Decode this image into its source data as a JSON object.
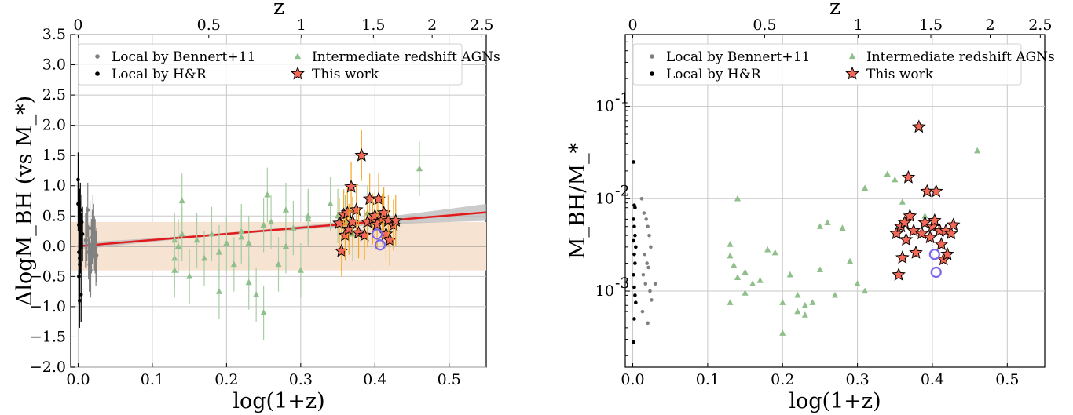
{
  "chart_data": [
    {
      "type": "scatter",
      "xlabel": "log(1+z)",
      "ylabel": "ΔlogM_BH (vs M_*)",
      "top_axis_label": "z",
      "xlim": [
        -0.01,
        0.55
      ],
      "ylim": [
        -2.0,
        3.5
      ],
      "x_ticks": [
        "0.0",
        "0.1",
        "0.2",
        "0.3",
        "0.4",
        "0.5"
      ],
      "y_ticks": [
        "3.5",
        "3.0",
        "2.5",
        "2.0",
        "1.5",
        "1.0",
        "0.5",
        "0.0",
        "−0.5",
        "−1.0",
        "−1.5",
        "−2.0"
      ],
      "top_ticks": [
        "0",
        "0.5",
        "1",
        "1.5",
        "2",
        "2.5"
      ],
      "grid": true,
      "legend_position": "top",
      "legend": [
        "Local by Bennert+11",
        "Local by H&R",
        "Intermediate redshift AGNs",
        "This work"
      ],
      "colors": {
        "bennert": "#808080",
        "hr": "#000000",
        "agn": "#8fbf8a",
        "this_work": "#f26a57",
        "fit": "#e31a1c",
        "band": "#f7e3d2",
        "errbar": "#f5a623",
        "highlight": "#7b68ee"
      },
      "fit_line": {
        "x": [
          0.0,
          0.55
        ],
        "y": [
          0.0,
          0.56
        ]
      },
      "scatter_band": [
        -0.4,
        0.4
      ],
      "series": [
        {
          "name": "Local by H&R",
          "x": [
            0.0,
            0.0,
            0.002,
            0.003,
            0.004,
            0.001,
            0.002,
            0.003,
            0.005,
            0.001,
            0.004,
            0.002,
            0.003,
            0.006,
            0.001,
            0.002
          ],
          "y": [
            1.1,
            0.7,
            0.5,
            0.3,
            0.1,
            -0.1,
            -0.2,
            0.0,
            0.4,
            -0.5,
            -0.8,
            -0.9,
            0.6,
            0.2,
            0.35,
            -0.3
          ]
        },
        {
          "name": "Local by Bennert+11",
          "x": [
            0.01,
            0.012,
            0.014,
            0.016,
            0.018,
            0.02,
            0.022,
            0.024,
            0.015,
            0.019,
            0.021,
            0.013,
            0.017,
            0.023,
            0.011,
            0.025
          ],
          "y": [
            0.1,
            0.2,
            -0.1,
            0.3,
            0.0,
            0.4,
            0.05,
            -0.2,
            -0.3,
            0.15,
            0.25,
            0.6,
            -0.4,
            0.0,
            0.1,
            -0.15
          ]
        },
        {
          "name": "Intermediate redshift AGNs",
          "x": [
            0.13,
            0.13,
            0.135,
            0.14,
            0.15,
            0.16,
            0.18,
            0.19,
            0.2,
            0.21,
            0.22,
            0.23,
            0.24,
            0.25,
            0.26,
            0.27,
            0.28,
            0.29,
            0.3,
            0.31,
            0.34,
            0.35,
            0.36,
            0.37,
            0.39,
            0.46,
            0.19,
            0.22,
            0.25,
            0.28,
            0.13,
            0.14,
            0.23,
            0.31,
            0.17,
            0.255
          ],
          "y": [
            0.1,
            -0.2,
            0.0,
            0.75,
            -0.5,
            0.1,
            0.2,
            -0.1,
            0.05,
            -0.3,
            0.25,
            -0.6,
            -0.8,
            0.35,
            0.4,
            -0.3,
            0.0,
            0.3,
            -0.4,
            0.45,
            0.7,
            0.5,
            0.4,
            0.2,
            0.55,
            1.28,
            -0.75,
            0.15,
            -1.1,
            0.6,
            -0.4,
            0.2,
            0.05,
            0.5,
            -0.2,
            0.85
          ]
        },
        {
          "name": "This work",
          "x": [
            0.352,
            0.355,
            0.358,
            0.36,
            0.363,
            0.365,
            0.368,
            0.37,
            0.375,
            0.378,
            0.382,
            0.386,
            0.39,
            0.393,
            0.397,
            0.4,
            0.403,
            0.405,
            0.41,
            0.412,
            0.415,
            0.418,
            0.42,
            0.425,
            0.428
          ],
          "y": [
            0.38,
            -0.08,
            0.52,
            0.18,
            0.55,
            0.28,
            0.98,
            0.4,
            0.6,
            0.22,
            1.5,
            0.18,
            0.4,
            0.78,
            0.45,
            0.5,
            0.36,
            0.78,
            0.45,
            0.55,
            0.2,
            0.42,
            0.1,
            0.35,
            0.42
          ]
        },
        {
          "name": "highlight",
          "x": [
            0.403,
            0.407
          ],
          "y": [
            0.2,
            0.02
          ]
        }
      ]
    },
    {
      "type": "scatter",
      "xlabel": "log(1+z)",
      "ylabel": "M_BH/M_*",
      "top_axis_label": "z",
      "xlim": [
        -0.01,
        0.55
      ],
      "ylim": [
        0.00015,
        0.6
      ],
      "y_scale": "log",
      "x_ticks": [
        "0.0",
        "0.1",
        "0.2",
        "0.3",
        "0.4",
        "0.5"
      ],
      "y_ticks": [
        "10-1",
        "10-2",
        "10-3"
      ],
      "top_ticks": [
        "0",
        "0.5",
        "1",
        "1.5",
        "2",
        "2.5"
      ],
      "grid": true,
      "legend_position": "top",
      "legend": [
        "Local by Bennert+11",
        "Local by H&R",
        "Intermediate redshift AGNs",
        "This work"
      ],
      "series": [
        {
          "name": "Local by H&R",
          "x": [
            0.001,
            0.002,
            0.003,
            0.001,
            0.002,
            0.003,
            0.001,
            0.004,
            0.002,
            0.003,
            0.001,
            0.002,
            0.003,
            0.004,
            0.002,
            0.001
          ],
          "y": [
            0.025,
            0.0085,
            0.008,
            0.006,
            0.005,
            0.004,
            0.0035,
            0.003,
            0.0025,
            0.002,
            0.0015,
            0.0011,
            0.0009,
            0.00075,
            0.0005,
            0.00028
          ]
        },
        {
          "name": "Local by Bennert+11",
          "x": [
            0.012,
            0.015,
            0.018,
            0.02,
            0.022,
            0.024,
            0.016,
            0.019,
            0.021,
            0.014,
            0.017,
            0.023,
            0.025,
            0.013,
            0.02,
            0.03
          ],
          "y": [
            0.01,
            0.007,
            0.006,
            0.005,
            0.004,
            0.003,
            0.0025,
            0.002,
            0.0018,
            0.0015,
            0.0012,
            0.001,
            0.0008,
            0.0006,
            0.00045,
            0.0012
          ]
        },
        {
          "name": "Intermediate redshift AGNs",
          "x": [
            0.13,
            0.14,
            0.13,
            0.135,
            0.14,
            0.15,
            0.16,
            0.18,
            0.19,
            0.2,
            0.21,
            0.22,
            0.23,
            0.24,
            0.25,
            0.26,
            0.27,
            0.28,
            0.29,
            0.3,
            0.31,
            0.34,
            0.35,
            0.36,
            0.37,
            0.39,
            0.46,
            0.22,
            0.25,
            0.13,
            0.15,
            0.23,
            0.31,
            0.2,
            0.17
          ],
          "y": [
            0.0032,
            0.01,
            0.0024,
            0.0019,
            0.0014,
            0.0016,
            0.0012,
            0.0028,
            0.0026,
            0.00075,
            0.0015,
            0.0006,
            0.00055,
            0.00075,
            0.005,
            0.0055,
            0.0009,
            0.0048,
            0.0021,
            0.0012,
            0.013,
            0.0185,
            0.016,
            0.0092,
            0.0064,
            0.0065,
            0.033,
            0.0009,
            0.0017,
            0.00075,
            0.00095,
            0.0007,
            0.001,
            0.00035,
            0.0013
          ]
        },
        {
          "name": "This work",
          "x": [
            0.352,
            0.355,
            0.358,
            0.36,
            0.363,
            0.365,
            0.368,
            0.37,
            0.375,
            0.378,
            0.382,
            0.386,
            0.39,
            0.393,
            0.397,
            0.4,
            0.403,
            0.405,
            0.41,
            0.412,
            0.415,
            0.418,
            0.42,
            0.425,
            0.428
          ],
          "y": [
            0.0042,
            0.0015,
            0.005,
            0.0023,
            0.0055,
            0.0036,
            0.017,
            0.0065,
            0.0045,
            0.0026,
            0.06,
            0.0042,
            0.0055,
            0.012,
            0.0038,
            0.005,
            0.0058,
            0.012,
            0.0045,
            0.0032,
            0.0022,
            0.0045,
            0.0025,
            0.0042,
            0.0052
          ]
        },
        {
          "name": "highlight",
          "x": [
            0.403,
            0.405
          ],
          "y": [
            0.0025,
            0.0016
          ]
        }
      ]
    }
  ]
}
